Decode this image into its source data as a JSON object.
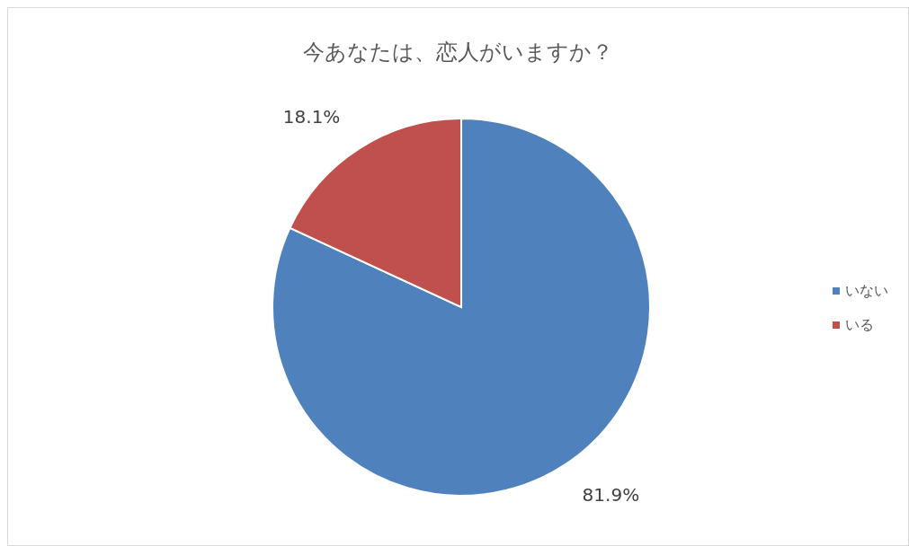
{
  "chart_data": {
    "type": "pie",
    "title": "今あなたは、恋人がいますか？",
    "categories": [
      "いない",
      "いる"
    ],
    "values": [
      81.9,
      18.1
    ],
    "colors": [
      "#4f81bd",
      "#c0504d"
    ],
    "value_labels": [
      "81.9%",
      "18.1%"
    ],
    "legend": "right"
  }
}
